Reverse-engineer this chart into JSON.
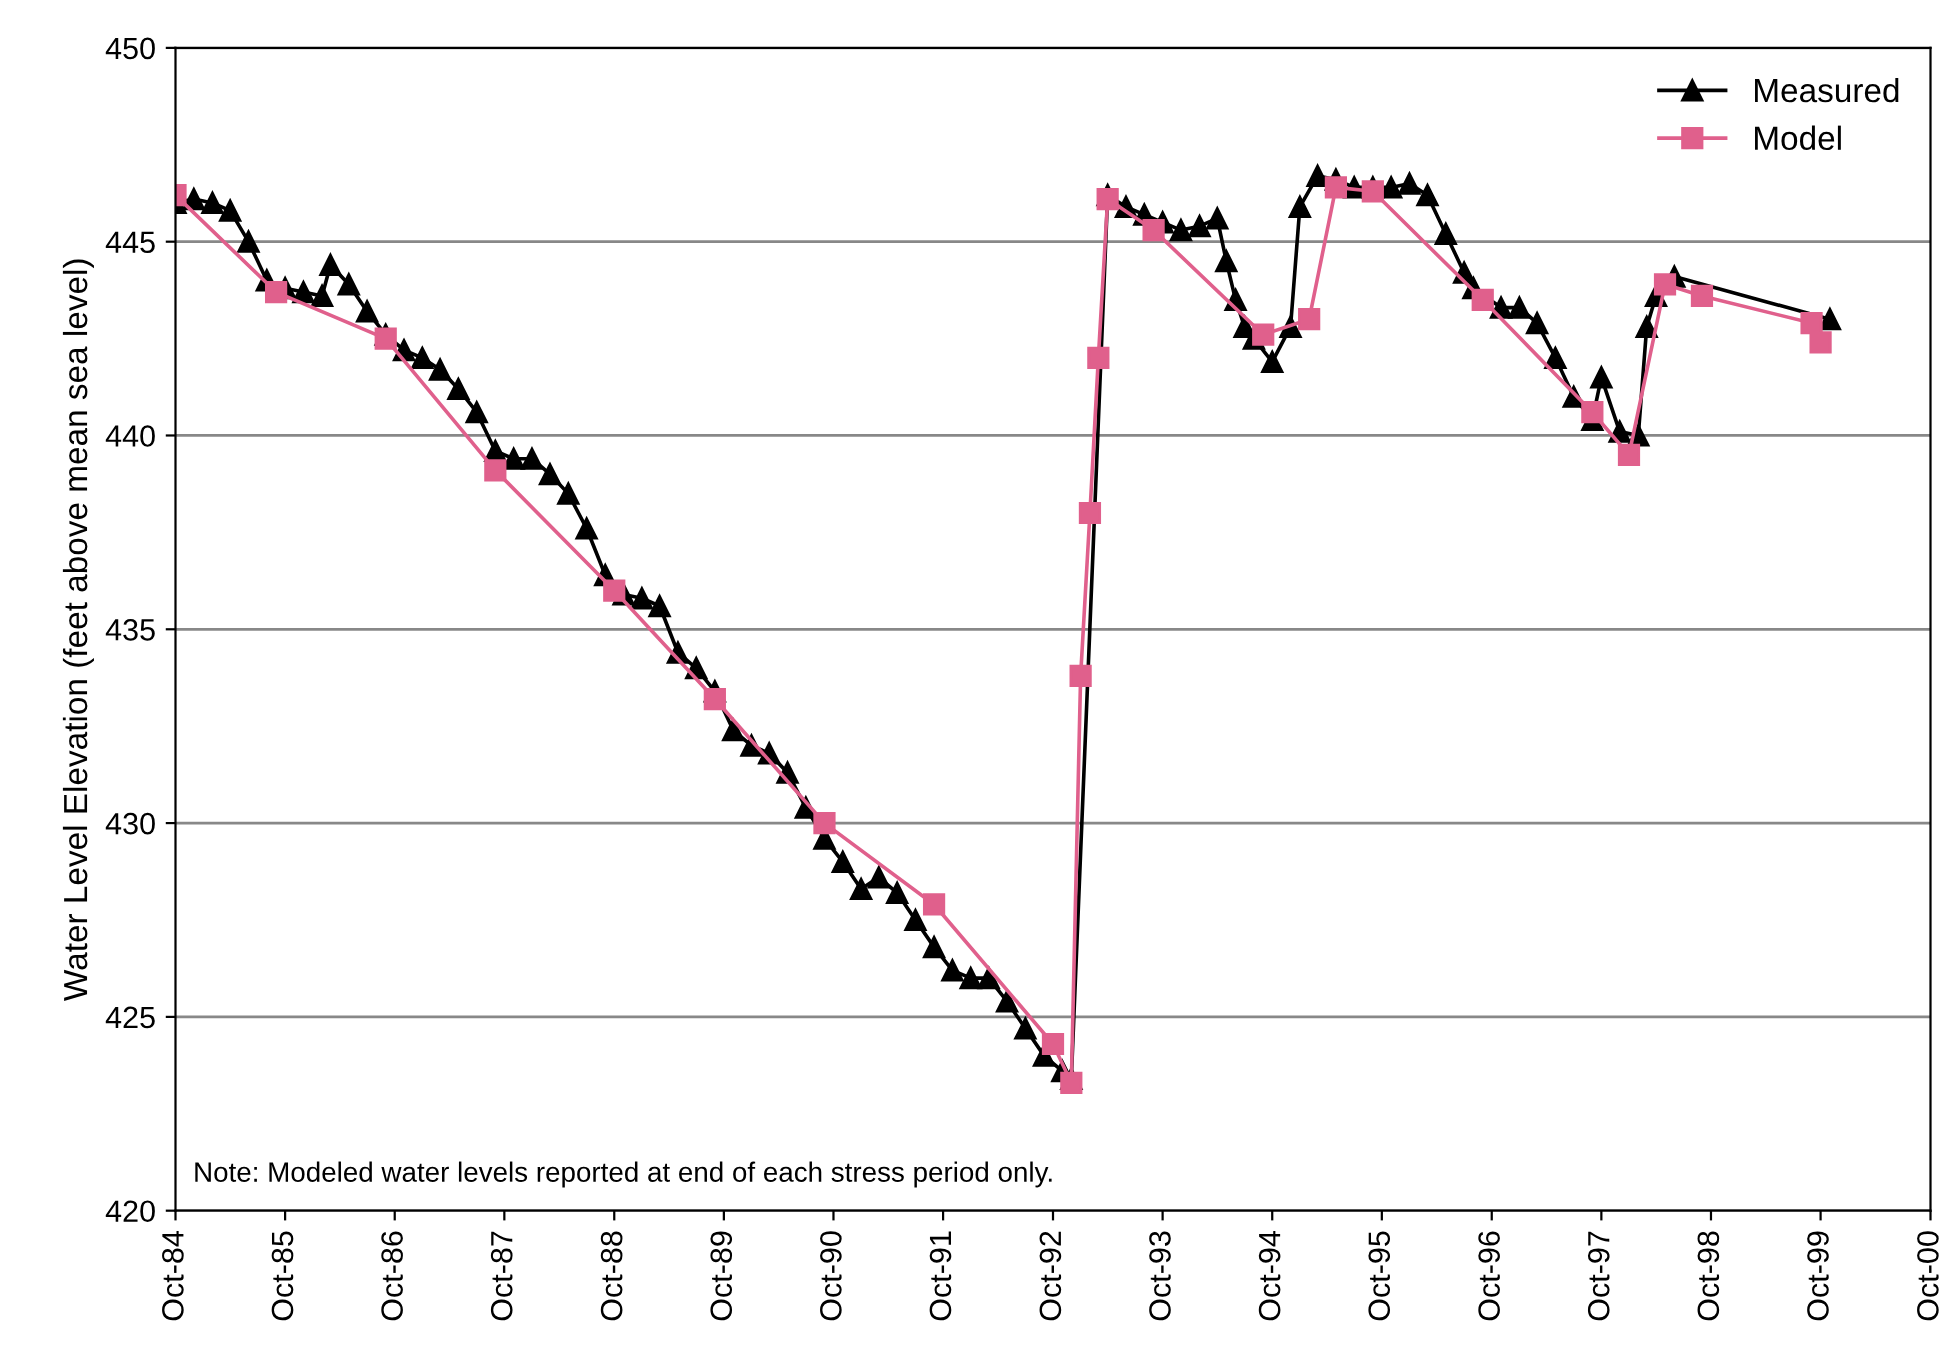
{
  "chart_data": {
    "type": "line",
    "ylabel": "Water Level Elevation (feet above mean sea level)",
    "annotations": [
      "Note: Modeled water levels reported at end of each stress period only."
    ],
    "xlim": [
      "1984-10",
      "2000-10"
    ],
    "xticks": [
      {
        "value": "1984-10",
        "label": "Oct-84"
      },
      {
        "value": "1985-10",
        "label": "Oct-85"
      },
      {
        "value": "1986-10",
        "label": "Oct-86"
      },
      {
        "value": "1987-10",
        "label": "Oct-87"
      },
      {
        "value": "1988-10",
        "label": "Oct-88"
      },
      {
        "value": "1989-10",
        "label": "Oct-89"
      },
      {
        "value": "1990-10",
        "label": "Oct-90"
      },
      {
        "value": "1991-10",
        "label": "Oct-91"
      },
      {
        "value": "1992-10",
        "label": "Oct-92"
      },
      {
        "value": "1993-10",
        "label": "Oct-93"
      },
      {
        "value": "1994-10",
        "label": "Oct-94"
      },
      {
        "value": "1995-10",
        "label": "Oct-95"
      },
      {
        "value": "1996-10",
        "label": "Oct-96"
      },
      {
        "value": "1997-10",
        "label": "Oct-97"
      },
      {
        "value": "1998-10",
        "label": "Oct-98"
      },
      {
        "value": "1999-10",
        "label": "Oct-99"
      },
      {
        "value": "2000-10",
        "label": "Oct-00"
      }
    ],
    "ylim": [
      420,
      450
    ],
    "yticks": [
      420,
      425,
      430,
      435,
      440,
      445,
      450
    ],
    "grid": "y",
    "legend": "top right",
    "line_style": "solid",
    "series": [
      {
        "name": "Measured",
        "color": "#000000",
        "marker": "triangle",
        "x": [
          "1984-10",
          "1984-12",
          "1985-02",
          "1985-04",
          "1985-06",
          "1985-08",
          "1985-10",
          "1985-12",
          "1986-02",
          "1986-03",
          "1986-05",
          "1986-07",
          "1986-09",
          "1986-11",
          "1987-01",
          "1987-03",
          "1987-05",
          "1987-07",
          "1987-09",
          "1987-11",
          "1988-01",
          "1988-03",
          "1988-05",
          "1988-07",
          "1988-09",
          "1988-11",
          "1989-01",
          "1989-03",
          "1989-05",
          "1989-07",
          "1989-09",
          "1989-11",
          "1990-01",
          "1990-03",
          "1990-05",
          "1990-07",
          "1990-09",
          "1990-11",
          "1991-01",
          "1991-03",
          "1991-05",
          "1991-07",
          "1991-09",
          "1991-11",
          "1992-01",
          "1992-03",
          "1992-05",
          "1992-07",
          "1992-09",
          "1992-11",
          "1992-12",
          "1993-04",
          "1993-06",
          "1993-08",
          "1993-10",
          "1993-12",
          "1994-02",
          "1994-04",
          "1994-05",
          "1994-06",
          "1994-07",
          "1994-08",
          "1994-10",
          "1994-12",
          "1995-01",
          "1995-03",
          "1995-05",
          "1995-07",
          "1995-09",
          "1995-11",
          "1996-01",
          "1996-03",
          "1996-05",
          "1996-07",
          "1996-08",
          "1996-11",
          "1997-01",
          "1997-03",
          "1997-05",
          "1997-07",
          "1997-09",
          "1997-10",
          "1997-12",
          "1998-02",
          "1998-03",
          "1998-04",
          "1998-06",
          "1999-11"
        ],
        "values": [
          446.0,
          446.1,
          446.0,
          445.8,
          445.0,
          444.0,
          443.8,
          443.7,
          443.6,
          444.4,
          443.9,
          443.2,
          442.6,
          442.2,
          442.0,
          441.7,
          441.2,
          440.6,
          439.6,
          439.4,
          439.4,
          439.0,
          438.5,
          437.6,
          436.4,
          435.9,
          435.8,
          435.6,
          434.4,
          434.0,
          433.4,
          432.4,
          432.0,
          431.8,
          431.3,
          430.4,
          429.6,
          429.0,
          428.3,
          428.6,
          428.2,
          427.5,
          426.8,
          426.2,
          426.0,
          426.0,
          425.4,
          424.7,
          424.0,
          423.6,
          423.4,
          446.2,
          445.9,
          445.7,
          445.5,
          445.3,
          445.4,
          445.6,
          444.5,
          443.5,
          442.8,
          442.5,
          441.9,
          442.8,
          445.9,
          446.7,
          446.6,
          446.4,
          446.4,
          446.4,
          446.5,
          446.2,
          445.2,
          444.2,
          443.8,
          443.3,
          443.3,
          442.9,
          442.0,
          441.0,
          440.4,
          441.5,
          440.1,
          440.0,
          442.8,
          443.6,
          444.1,
          443.0
        ]
      },
      {
        "name": "Model",
        "color": "#e0608c",
        "marker": "square",
        "x": [
          "1984-10",
          "1985-09",
          "1986-09",
          "1987-09",
          "1988-10",
          "1989-09",
          "1990-09",
          "1991-09",
          "1992-10",
          "1992-12",
          "1993-01",
          "1993-02",
          "1993-03",
          "1993-04",
          "1993-09",
          "1994-09",
          "1995-02",
          "1995-05",
          "1995-09",
          "1996-09",
          "1997-09",
          "1998-01",
          "1998-05",
          "1998-09",
          "1999-09",
          "1999-10"
        ],
        "values": [
          446.2,
          443.7,
          442.5,
          439.1,
          436.0,
          433.2,
          430.0,
          427.9,
          424.3,
          423.3,
          433.8,
          438.0,
          442.0,
          446.1,
          445.3,
          442.6,
          443.0,
          446.4,
          446.3,
          443.5,
          440.6,
          439.5,
          443.9,
          443.6,
          442.9,
          442.4
        ]
      }
    ]
  }
}
